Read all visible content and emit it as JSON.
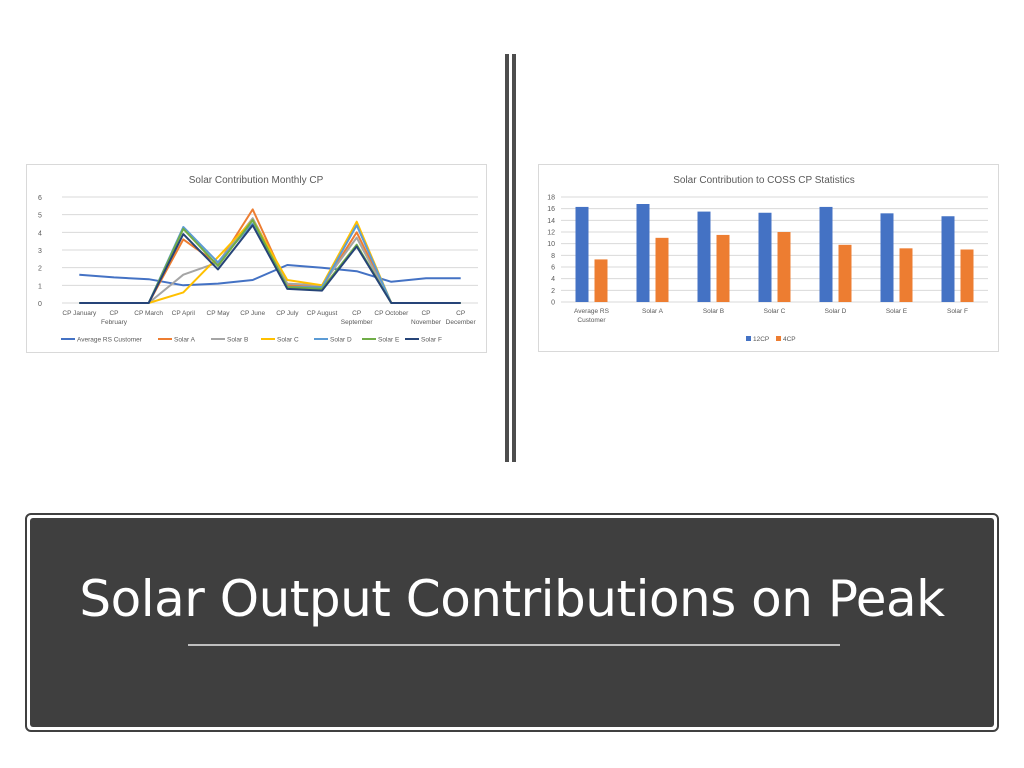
{
  "slide": {
    "title": "Solar Output Contributions on Peak"
  },
  "chart_data": [
    {
      "type": "line",
      "title": "Solar Contribution Monthly CP",
      "categories": [
        "CP January",
        "CP February",
        "CP March",
        "CP April",
        "CP May",
        "CP June",
        "CP July",
        "CP August",
        "CP September",
        "CP October",
        "CP November",
        "CP December"
      ],
      "category_lines": [
        [
          "CP January"
        ],
        [
          "CP",
          "February"
        ],
        [
          "CP March"
        ],
        [
          "CP April"
        ],
        [
          "CP May"
        ],
        [
          "CP June"
        ],
        [
          "CP July"
        ],
        [
          "CP August"
        ],
        [
          "CP",
          "September"
        ],
        [
          "CP October"
        ],
        [
          "CP",
          "November"
        ],
        [
          "CP",
          "December"
        ]
      ],
      "ylim": [
        0,
        6
      ],
      "yticks": [
        0,
        1,
        2,
        3,
        4,
        5,
        6
      ],
      "grid": true,
      "legend": "bottom",
      "series": [
        {
          "name": "Average RS Customer",
          "color": "#4472c4",
          "values": [
            1.6,
            1.45,
            1.35,
            1.0,
            1.1,
            1.3,
            2.15,
            2.0,
            1.8,
            1.2,
            1.4,
            1.4
          ]
        },
        {
          "name": "Solar A",
          "color": "#ed7d31",
          "values": [
            0,
            0,
            0,
            3.6,
            2.2,
            5.3,
            1.0,
            0.9,
            4.0,
            0,
            0,
            0
          ]
        },
        {
          "name": "Solar B",
          "color": "#a5a5a5",
          "values": [
            0,
            0,
            0,
            1.6,
            2.3,
            4.8,
            1.1,
            1.0,
            3.7,
            0,
            0,
            0
          ]
        },
        {
          "name": "Solar C",
          "color": "#ffc000",
          "values": [
            0,
            0,
            0,
            0.6,
            2.6,
            4.7,
            1.3,
            1.0,
            4.6,
            0,
            0,
            0
          ]
        },
        {
          "name": "Solar D",
          "color": "#5b9bd5",
          "values": [
            0,
            0,
            0,
            4.3,
            2.3,
            4.5,
            0.9,
            0.9,
            4.4,
            0,
            0,
            0
          ]
        },
        {
          "name": "Solar E",
          "color": "#70ad47",
          "values": [
            0,
            0,
            0,
            4.2,
            2.1,
            4.7,
            0.9,
            0.8,
            3.3,
            0,
            0,
            0
          ]
        },
        {
          "name": "Solar F",
          "color": "#264478",
          "values": [
            0,
            0,
            0,
            3.9,
            1.9,
            4.4,
            0.8,
            0.7,
            3.2,
            0,
            0,
            0
          ]
        }
      ]
    },
    {
      "type": "bar",
      "title": "Solar Contribution to COSS CP Statistics",
      "categories": [
        "Average RS Customer",
        "Solar A",
        "Solar B",
        "Solar C",
        "Solar D",
        "Solar E",
        "Solar F"
      ],
      "category_lines": [
        [
          "Average RS",
          "Customer"
        ],
        [
          "Solar A"
        ],
        [
          "Solar B"
        ],
        [
          "Solar C"
        ],
        [
          "Solar D"
        ],
        [
          "Solar E"
        ],
        [
          "Solar F"
        ]
      ],
      "ylim": [
        0,
        18
      ],
      "yticks": [
        0,
        2,
        4,
        6,
        8,
        10,
        12,
        14,
        16,
        18
      ],
      "grid": true,
      "legend": "bottom",
      "series": [
        {
          "name": "12CP",
          "color": "#4472c4",
          "values": [
            16.3,
            16.8,
            15.5,
            15.3,
            16.3,
            15.2,
            14.7
          ]
        },
        {
          "name": "4CP",
          "color": "#ed7d31",
          "values": [
            7.3,
            11.0,
            11.5,
            12.0,
            9.8,
            9.2,
            9.0
          ]
        }
      ]
    }
  ]
}
